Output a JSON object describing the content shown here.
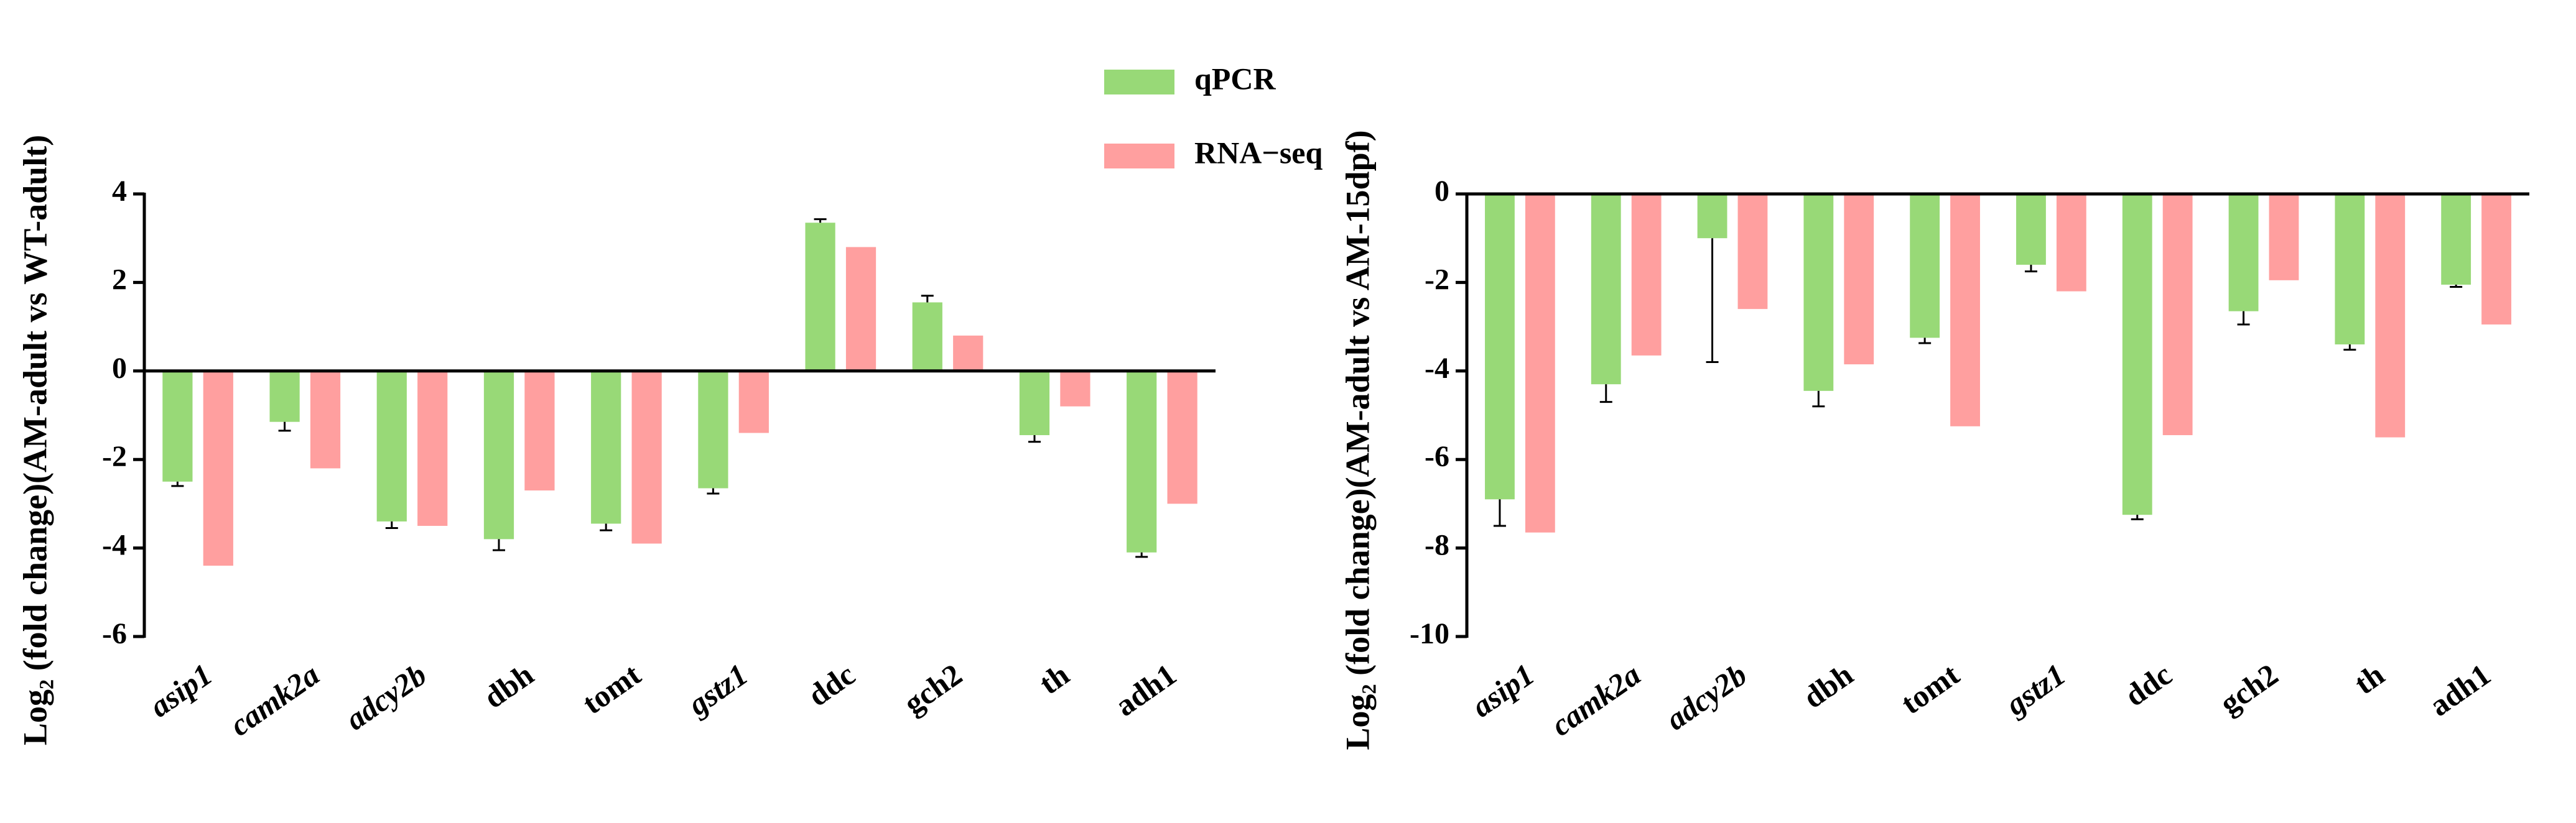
{
  "chart_data": [
    {
      "type": "bar",
      "ylabel": "Log₂ (fold change)(AM-adult vs WT-adult)",
      "categories": [
        "asip1",
        "camk2a",
        "adcy2b",
        "dbh",
        "tomt",
        "gstz1",
        "ddc",
        "gch2",
        "th",
        "adh1"
      ],
      "series": [
        {
          "name": "qPCR",
          "color": "#98d977",
          "values": [
            -2.5,
            -1.15,
            -3.4,
            -3.8,
            -3.45,
            -2.65,
            3.35,
            1.55,
            -1.45,
            -4.1
          ],
          "errors": [
            0.1,
            0.2,
            0.15,
            0.25,
            0.15,
            0.12,
            0.08,
            0.15,
            0.15,
            0.1
          ]
        },
        {
          "name": "RNA−seq",
          "color": "#ff9f9f",
          "values": [
            -4.4,
            -2.2,
            -3.5,
            -2.7,
            -3.9,
            -1.4,
            2.8,
            0.8,
            -0.8,
            -3.0
          ]
        }
      ],
      "ylim": [
        -6,
        4
      ],
      "yticks": [
        -6,
        -4,
        -2,
        0,
        2,
        4
      ],
      "legend": "upper right"
    },
    {
      "type": "bar",
      "ylabel": "Log₂ (fold change)(AM-adult vs AM-15dpf)",
      "categories": [
        "asip1",
        "camk2a",
        "adcy2b",
        "dbh",
        "tomt",
        "gstz1",
        "ddc",
        "gch2",
        "th",
        "adh1"
      ],
      "series": [
        {
          "name": "qPCR",
          "color": "#98d977",
          "values": [
            -6.9,
            -4.3,
            -1.0,
            -4.45,
            -3.25,
            -1.6,
            -7.25,
            -2.65,
            -3.4,
            -2.05
          ],
          "errors": [
            0.6,
            0.4,
            2.8,
            0.35,
            0.12,
            0.15,
            0.1,
            0.3,
            0.12,
            0.05
          ]
        },
        {
          "name": "RNA−seq",
          "color": "#ff9f9f",
          "values": [
            -7.65,
            -3.65,
            -2.6,
            -3.85,
            -5.25,
            -2.2,
            -5.45,
            -1.95,
            -5.5,
            -2.95
          ]
        }
      ],
      "ylim": [
        -10,
        0
      ],
      "yticks": [
        -10,
        -8,
        -6,
        -4,
        -2,
        0
      ]
    }
  ]
}
